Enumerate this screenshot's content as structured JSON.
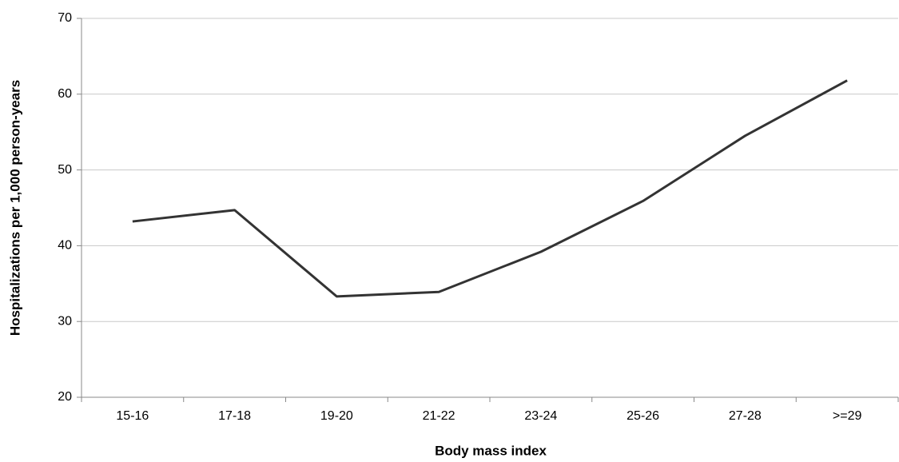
{
  "chart_data": {
    "type": "line",
    "x_label": "Body mass index",
    "y_label": "Hospitalizations per 1,000 person-years",
    "categories": [
      "15-16",
      "17-18",
      "19-20",
      "21-22",
      "23-24",
      "25-26",
      "27-28",
      ">=29"
    ],
    "series": [
      {
        "name": "Hospitalizations",
        "color": "#333333",
        "values": [
          43.2,
          44.7,
          33.3,
          33.9,
          39.2,
          45.9,
          54.5,
          61.8
        ]
      }
    ],
    "ylim": [
      20,
      70
    ],
    "yticks": [
      20,
      30,
      40,
      50,
      60,
      70
    ],
    "grid": true
  }
}
